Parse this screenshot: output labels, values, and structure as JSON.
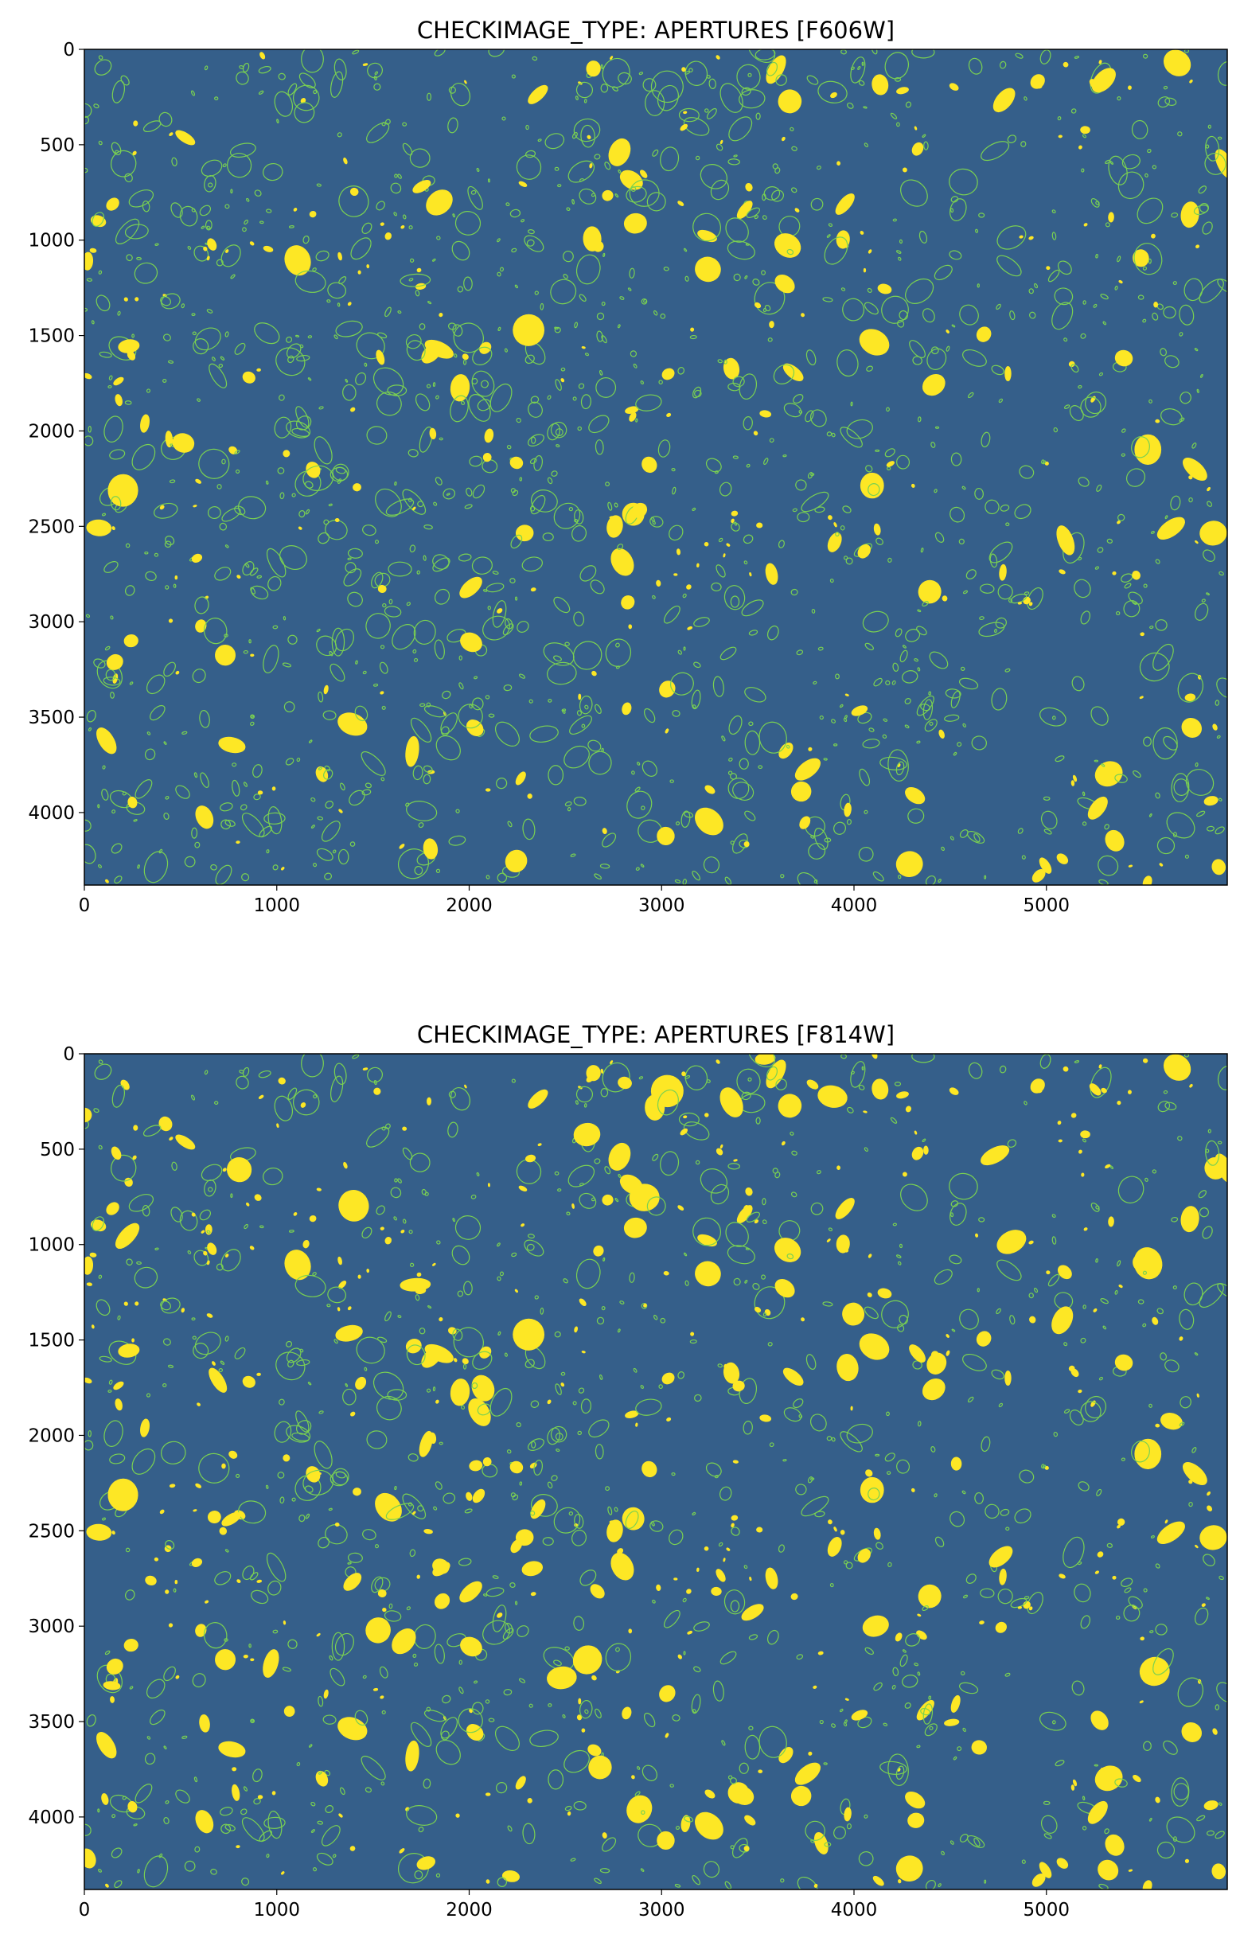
{
  "chart_data": [
    {
      "type": "image",
      "title": "CHECKIMAGE_TYPE: APERTURES [F606W]",
      "xlim": [
        0,
        5940
      ],
      "ylim": [
        4380,
        0
      ],
      "xticks": [
        0,
        1000,
        2000,
        3000,
        4000,
        5000
      ],
      "yticks": [
        0,
        500,
        1000,
        1500,
        2000,
        2500,
        3000,
        3500,
        4000
      ]
    },
    {
      "type": "image",
      "title": "CHECKIMAGE_TYPE: APERTURES [F814W]",
      "xlim": [
        0,
        5940
      ],
      "ylim": [
        4380,
        0
      ],
      "xticks": [
        0,
        1000,
        2000,
        3000,
        4000,
        5000
      ],
      "yticks": [
        0,
        500,
        1000,
        1500,
        2000,
        2500,
        3000,
        3500,
        4000
      ]
    }
  ]
}
